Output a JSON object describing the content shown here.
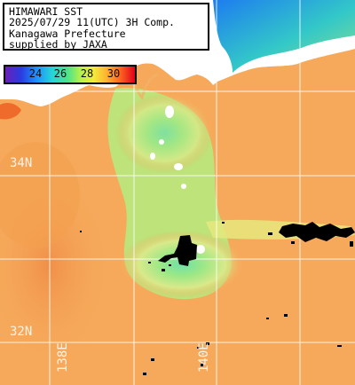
{
  "title_block": {
    "line1": "HIMAWARI SST",
    "line2": "2025/07/29 11(UTC) 3H Comp.",
    "line3": "Kanagawa Prefecture",
    "line4": "supplied by JAXA"
  },
  "color_scale": {
    "unit": "",
    "ticks": [
      "24",
      "26",
      "28",
      "30"
    ],
    "colors": [
      "#6a1fb8",
      "#2b3be0",
      "#1f8fff",
      "#27d3d9",
      "#4be38a",
      "#b6f04c",
      "#f2ec3c",
      "#ffb431",
      "#ff6a1e",
      "#e2001b"
    ]
  },
  "graticule": {
    "lat_labels": [
      "34N",
      "32N"
    ],
    "lon_labels": [
      "138E",
      "140E"
    ],
    "line_color": "#ffffff"
  },
  "palette": {
    "land": "#ffffff",
    "cloud_mask": "#000000",
    "sea_warm": "#f6a95a",
    "sea_cool": "#a8ea7a"
  }
}
